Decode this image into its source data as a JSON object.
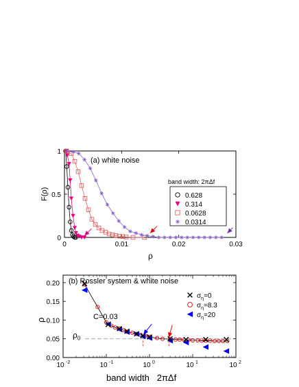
{
  "chart_data": [
    {
      "type": "line",
      "panel_label": "(a) white noise",
      "ylabel": "F(ρ)",
      "xlabel": "ρ",
      "xlim": [
        0,
        0.03
      ],
      "ylim": [
        0,
        1
      ],
      "x_ticks": [
        "0",
        "0.01",
        "0.02",
        "0.03"
      ],
      "y_ticks": [
        "0",
        "0.5",
        "1"
      ],
      "legend_title": "band width: 2πΔf",
      "legend_position": "right",
      "series": [
        {
          "name": "0.628",
          "marker": "circle",
          "color": "#000000",
          "points": [
            [
              0.0002,
              1.0
            ],
            [
              0.0004,
              0.82
            ],
            [
              0.0006,
              0.58
            ],
            [
              0.0008,
              0.35
            ],
            [
              0.001,
              0.18
            ],
            [
              0.0012,
              0.08
            ],
            [
              0.0014,
              0.03
            ],
            [
              0.0016,
              0.01
            ],
            [
              0.0018,
              0.0
            ],
            [
              0.002,
              0.0
            ]
          ]
        },
        {
          "name": "0.314",
          "marker": "triangle-down",
          "color": "#e6007e",
          "points": [
            [
              0.0003,
              1.0
            ],
            [
              0.0005,
              0.95
            ],
            [
              0.0008,
              0.85
            ],
            [
              0.001,
              0.66
            ],
            [
              0.0012,
              0.45
            ],
            [
              0.0015,
              0.25
            ],
            [
              0.0018,
              0.11
            ],
            [
              0.002,
              0.05
            ],
            [
              0.0023,
              0.02
            ],
            [
              0.0026,
              0.01
            ],
            [
              0.003,
              0.0
            ],
            [
              0.0035,
              0.0
            ]
          ]
        },
        {
          "name": "0.0628",
          "marker": "square",
          "color": "#e06060",
          "points": [
            [
              0.0004,
              1.0
            ],
            [
              0.0012,
              0.97
            ],
            [
              0.0018,
              0.88
            ],
            [
              0.0024,
              0.76
            ],
            [
              0.003,
              0.6
            ],
            [
              0.0036,
              0.45
            ],
            [
              0.0042,
              0.32
            ],
            [
              0.0048,
              0.21
            ],
            [
              0.0054,
              0.15
            ],
            [
              0.006,
              0.11
            ],
            [
              0.0066,
              0.08
            ],
            [
              0.0072,
              0.06
            ],
            [
              0.0078,
              0.04
            ],
            [
              0.0084,
              0.03
            ],
            [
              0.009,
              0.02
            ],
            [
              0.0096,
              0.015
            ],
            [
              0.0102,
              0.01
            ],
            [
              0.0108,
              0.005
            ],
            [
              0.012,
              0.0
            ],
            [
              0.014,
              0.0
            ]
          ]
        },
        {
          "name": "0.0314",
          "marker": "star",
          "color": "#8a60c8",
          "points": [
            [
              0.0005,
              1.0
            ],
            [
              0.0015,
              0.99
            ],
            [
              0.0025,
              0.97
            ],
            [
              0.0035,
              0.9
            ],
            [
              0.0045,
              0.8
            ],
            [
              0.0055,
              0.66
            ],
            [
              0.0065,
              0.51
            ],
            [
              0.0075,
              0.38
            ],
            [
              0.0085,
              0.28
            ],
            [
              0.0095,
              0.19
            ],
            [
              0.0105,
              0.12
            ],
            [
              0.0115,
              0.07
            ],
            [
              0.0125,
              0.05
            ],
            [
              0.0135,
              0.03
            ],
            [
              0.0145,
              0.02
            ],
            [
              0.0155,
              0.01
            ],
            [
              0.0165,
              0.0
            ],
            [
              0.0175,
              0.0
            ],
            [
              0.0185,
              0.0
            ],
            [
              0.0195,
              0.0
            ],
            [
              0.0205,
              0.0
            ],
            [
              0.0215,
              0.0
            ],
            [
              0.0225,
              0.0
            ],
            [
              0.0235,
              0.0
            ],
            [
              0.0245,
              0.0
            ],
            [
              0.0255,
              0.0
            ],
            [
              0.0265,
              0.0
            ],
            [
              0.0275,
              0.0
            ]
          ]
        }
      ],
      "arrows": [
        {
          "x": 0.015,
          "y": 0.05,
          "color": "#e00000"
        },
        {
          "x": 0.0035,
          "y": 0.02,
          "color": "#e6007e"
        },
        {
          "x": 0.0285,
          "y": 0.05,
          "color": "#7030a0"
        }
      ]
    },
    {
      "type": "scatter",
      "panel_label": "(b) Rossler system & white noise",
      "annotation": "C=0.03",
      "ylabel": "ρ",
      "xlabel": "band width   2πΔf",
      "x_scale": "log",
      "xlim": [
        0.01,
        100
      ],
      "ylim": [
        0,
        0.22
      ],
      "x_ticks": [
        "10",
        "10",
        "10",
        "10",
        "10"
      ],
      "x_tick_exponents": [
        "-2",
        "-1",
        "0",
        "1",
        "2"
      ],
      "y_ticks": [
        "0.00",
        "0.05",
        "0.10",
        "0.15",
        "0.20"
      ],
      "reference_line": {
        "y": 0.05,
        "label": "ρ₀",
        "label_main": "ρ",
        "label_sub": "0",
        "color": "#aaaaaa",
        "style": "dashed"
      },
      "legend_position": "top-right",
      "series": [
        {
          "name": "σ_η=0",
          "label_main": "σ",
          "label_sub": "η",
          "label_rest": "=0",
          "marker": "x",
          "color": "#000000",
          "points": [
            [
              0.0314,
              0.197
            ],
            [
              0.11,
              0.088
            ],
            [
              0.2,
              0.077
            ],
            [
              0.3,
              0.07
            ],
            [
              0.5,
              0.063
            ],
            [
              0.7,
              0.058
            ],
            [
              1.0,
              0.055
            ],
            [
              3.0,
              0.05
            ],
            [
              7.0,
              0.048
            ],
            [
              20.0,
              0.048
            ],
            [
              60.0,
              0.048
            ]
          ]
        },
        {
          "name": "σ_η=8.3",
          "label_main": "σ",
          "label_sub": "η",
          "label_rest": "=8.3",
          "marker": "circle-open",
          "color": "#e00000",
          "points": [
            [
              0.0314,
              0.195
            ],
            [
              0.063,
              0.135
            ],
            [
              0.1,
              0.094
            ],
            [
              0.13,
              0.085
            ],
            [
              0.16,
              0.08
            ],
            [
              0.2,
              0.077
            ],
            [
              0.25,
              0.073
            ],
            [
              0.3,
              0.069
            ],
            [
              0.4,
              0.066
            ],
            [
              0.5,
              0.063
            ],
            [
              0.63,
              0.06
            ],
            [
              0.8,
              0.058
            ],
            [
              1.0,
              0.055
            ],
            [
              1.5,
              0.052
            ],
            [
              2.0,
              0.05
            ],
            [
              3.0,
              0.049
            ],
            [
              4.0,
              0.048
            ],
            [
              5.0,
              0.048
            ],
            [
              6.3,
              0.047
            ],
            [
              8.0,
              0.047
            ],
            [
              10.0,
              0.046
            ],
            [
              13.0,
              0.046
            ],
            [
              16.0,
              0.045
            ],
            [
              20.0,
              0.045
            ],
            [
              25.0,
              0.045
            ],
            [
              32.0,
              0.044
            ],
            [
              40.0,
              0.044
            ],
            [
              50.0,
              0.044
            ],
            [
              63.0,
              0.044
            ]
          ]
        },
        {
          "name": "σ_η=20",
          "label_main": "σ",
          "label_sub": "η",
          "label_rest": "=20",
          "marker": "triangle-left",
          "color": "#0000ff",
          "points": [
            [
              0.0314,
              0.18
            ],
            [
              0.11,
              0.089
            ],
            [
              0.2,
              0.075
            ],
            [
              0.3,
              0.068
            ],
            [
              0.5,
              0.063
            ],
            [
              0.7,
              0.056
            ],
            [
              1.0,
              0.052
            ],
            [
              3.0,
              0.045
            ],
            [
              7.0,
              0.04
            ],
            [
              20.0,
              0.028
            ],
            [
              60.0,
              0.017
            ]
          ]
        }
      ],
      "arrows": [
        {
          "x": 0.7,
          "y": 0.058,
          "color": "#0000ff"
        },
        {
          "x": 2.8,
          "y": 0.05,
          "color": "#e00000"
        }
      ]
    }
  ]
}
